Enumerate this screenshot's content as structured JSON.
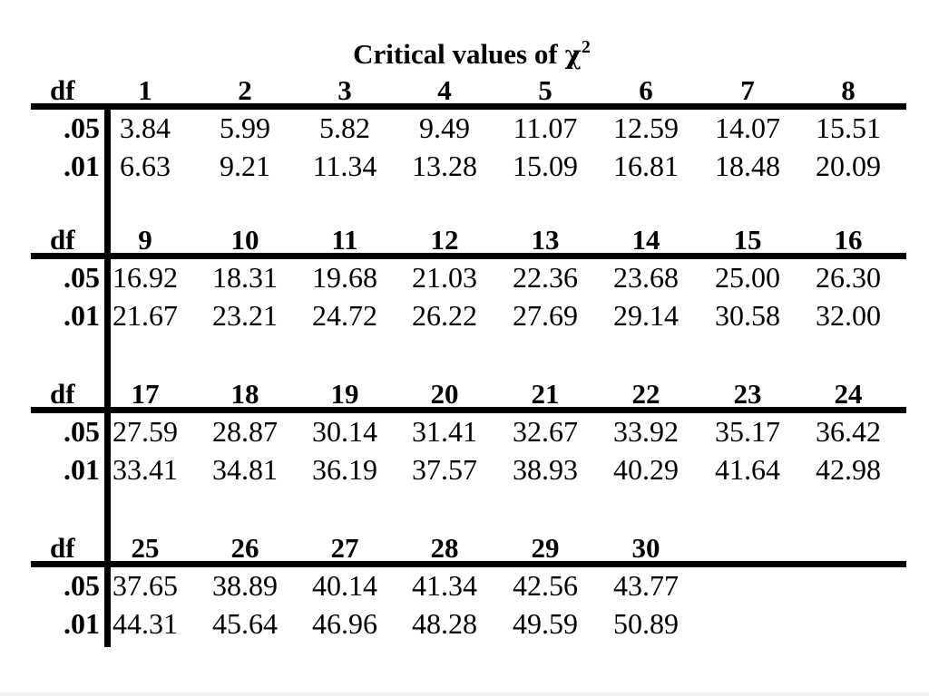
{
  "title_text": "Critical values of",
  "title_symbol": "χ",
  "title_superscript": "2",
  "df_label": "df",
  "row_labels": [
    ".05",
    ".01"
  ],
  "blocks": [
    {
      "df": [
        "1",
        "2",
        "3",
        "4",
        "5",
        "6",
        "7",
        "8"
      ],
      "p05": [
        "3.84",
        "5.99",
        "5.82",
        "9.49",
        "11.07",
        "12.59",
        "14.07",
        "15.51"
      ],
      "p01": [
        "6.63",
        "9.21",
        "11.34",
        "13.28",
        "15.09",
        "16.81",
        "18.48",
        "20.09"
      ]
    },
    {
      "df": [
        "9",
        "10",
        "11",
        "12",
        "13",
        "14",
        "15",
        "16"
      ],
      "p05": [
        "16.92",
        "18.31",
        "19.68",
        "21.03",
        "22.36",
        "23.68",
        "25.00",
        "26.30"
      ],
      "p01": [
        "21.67",
        "23.21",
        "24.72",
        "26.22",
        "27.69",
        "29.14",
        "30.58",
        "32.00"
      ]
    },
    {
      "df": [
        "17",
        "18",
        "19",
        "20",
        "21",
        "22",
        "23",
        "24"
      ],
      "p05": [
        "27.59",
        "28.87",
        "30.14",
        "31.41",
        "32.67",
        "33.92",
        "35.17",
        "36.42"
      ],
      "p01": [
        "33.41",
        "34.81",
        "36.19",
        "37.57",
        "38.93",
        "40.29",
        "41.64",
        "42.98"
      ]
    },
    {
      "df": [
        "25",
        "26",
        "27",
        "28",
        "29",
        "30"
      ],
      "p05": [
        "37.65",
        "38.89",
        "40.14",
        "41.34",
        "42.56",
        "43.77"
      ],
      "p01": [
        "44.31",
        "45.64",
        "46.96",
        "48.28",
        "49.59",
        "50.89"
      ]
    }
  ]
}
